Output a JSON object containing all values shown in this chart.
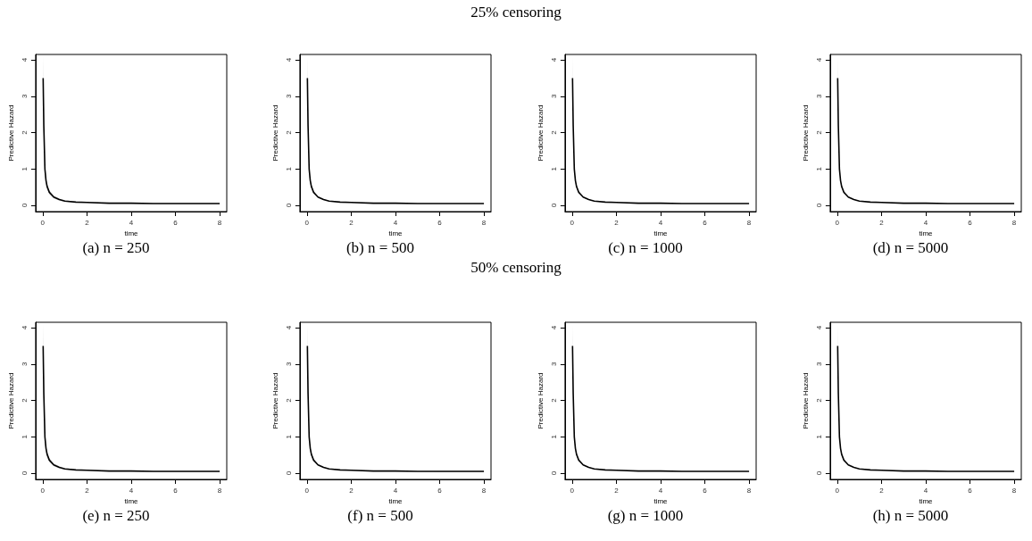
{
  "chart_data": [
    {
      "type": "line",
      "title": "(a) n = 250",
      "annotations": [
        "25% censoring"
      ],
      "xlabel": "time",
      "ylabel": "Predictive Hazard",
      "xlim": [
        -0.32,
        8.32
      ],
      "ylim": [
        -0.17,
        4.15
      ],
      "xticks": [
        0,
        2,
        4,
        6,
        8
      ],
      "yticks": [
        0,
        1,
        2,
        3,
        4
      ],
      "grid": false,
      "marker": "none",
      "x": [
        0.02,
        0.05,
        0.1,
        0.15,
        0.2,
        0.3,
        0.5,
        0.75,
        1,
        1.5,
        2,
        3,
        4,
        5,
        6,
        8
      ],
      "series": [
        {
          "color": "#000000",
          "values": [
            3.5,
            2.2,
            1.0,
            0.68,
            0.52,
            0.36,
            0.23,
            0.16,
            0.12,
            0.09,
            0.08,
            0.06,
            0.06,
            0.05,
            0.05,
            0.05
          ],
          "upper": [
            4.1,
            2.8,
            1.2,
            0.8,
            0.6,
            0.42,
            0.27,
            0.19,
            0.14,
            0.1,
            0.09,
            0.07,
            0.07,
            0.06,
            0.06,
            0.06
          ],
          "lower": [
            2.9,
            1.7,
            0.85,
            0.56,
            0.44,
            0.3,
            0.19,
            0.13,
            0.1,
            0.08,
            0.07,
            0.05,
            0.05,
            0.04,
            0.04,
            0.04
          ]
        }
      ]
    },
    {
      "type": "line",
      "title": "(b) n = 500",
      "xlabel": "time",
      "ylabel": "Predictive Hazard",
      "xlim": [
        -0.32,
        8.32
      ],
      "ylim": [
        -0.17,
        4.15
      ],
      "xticks": [
        0,
        2,
        4,
        6,
        8
      ],
      "yticks": [
        0,
        1,
        2,
        3,
        4
      ],
      "grid": false,
      "marker": "none",
      "x": [
        0.02,
        0.05,
        0.1,
        0.15,
        0.2,
        0.3,
        0.5,
        0.75,
        1,
        1.5,
        2,
        3,
        4,
        5,
        6,
        8
      ],
      "series": [
        {
          "color": "#000000",
          "values": [
            3.5,
            2.2,
            1.0,
            0.68,
            0.52,
            0.36,
            0.23,
            0.16,
            0.12,
            0.09,
            0.08,
            0.06,
            0.06,
            0.05,
            0.05,
            0.05
          ],
          "upper": [
            4.1,
            2.6,
            1.12,
            0.75,
            0.57,
            0.4,
            0.25,
            0.18,
            0.13,
            0.1,
            0.08,
            0.07,
            0.06,
            0.06,
            0.05,
            0.05
          ],
          "lower": [
            3.0,
            1.85,
            0.9,
            0.6,
            0.47,
            0.32,
            0.21,
            0.14,
            0.11,
            0.08,
            0.07,
            0.06,
            0.05,
            0.05,
            0.05,
            0.05
          ]
        }
      ]
    },
    {
      "type": "line",
      "title": "(c) n = 1000",
      "xlabel": "time",
      "ylabel": "Predictive Hazard",
      "xlim": [
        -0.32,
        8.32
      ],
      "ylim": [
        -0.17,
        4.15
      ],
      "xticks": [
        0,
        2,
        4,
        6,
        8
      ],
      "yticks": [
        0,
        1,
        2,
        3,
        4
      ],
      "grid": false,
      "marker": "none",
      "x": [
        0.02,
        0.05,
        0.1,
        0.15,
        0.2,
        0.3,
        0.5,
        0.75,
        1,
        1.5,
        2,
        3,
        4,
        5,
        6,
        8
      ],
      "series": [
        {
          "color": "#000000",
          "values": [
            3.5,
            2.2,
            1.0,
            0.68,
            0.52,
            0.36,
            0.23,
            0.16,
            0.12,
            0.09,
            0.08,
            0.06,
            0.06,
            0.05,
            0.05,
            0.05
          ],
          "upper": [
            4.1,
            2.4,
            1.06,
            0.71,
            0.54,
            0.38,
            0.24,
            0.17,
            0.13,
            0.09,
            0.08,
            0.06,
            0.06,
            0.05,
            0.05,
            0.05
          ],
          "lower": [
            3.2,
            2.0,
            0.95,
            0.65,
            0.5,
            0.34,
            0.22,
            0.15,
            0.12,
            0.09,
            0.07,
            0.06,
            0.05,
            0.05,
            0.05,
            0.05
          ]
        }
      ]
    },
    {
      "type": "line",
      "title": "(d) n = 5000",
      "xlabel": "time",
      "ylabel": "Predictive Hazard",
      "xlim": [
        -0.32,
        8.32
      ],
      "ylim": [
        -0.17,
        4.15
      ],
      "xticks": [
        0,
        2,
        4,
        6,
        8
      ],
      "yticks": [
        0,
        1,
        2,
        3,
        4
      ],
      "grid": false,
      "marker": "none",
      "x": [
        0.02,
        0.05,
        0.1,
        0.15,
        0.2,
        0.3,
        0.5,
        0.75,
        1,
        1.5,
        2,
        3,
        4,
        5,
        6,
        8
      ],
      "series": [
        {
          "color": "#000000",
          "values": [
            3.5,
            2.2,
            1.0,
            0.68,
            0.52,
            0.36,
            0.23,
            0.16,
            0.12,
            0.09,
            0.08,
            0.06,
            0.06,
            0.05,
            0.05,
            0.05
          ],
          "upper": [
            4.1,
            2.35,
            1.04,
            0.7,
            0.53,
            0.37,
            0.24,
            0.17,
            0.12,
            0.09,
            0.08,
            0.06,
            0.06,
            0.05,
            0.05,
            0.05
          ],
          "lower": [
            3.3,
            2.05,
            0.97,
            0.66,
            0.51,
            0.35,
            0.22,
            0.16,
            0.12,
            0.09,
            0.07,
            0.06,
            0.05,
            0.05,
            0.05,
            0.05
          ]
        }
      ]
    },
    {
      "type": "line",
      "title": "(e) n = 250",
      "annotations": [
        "50% censoring"
      ],
      "xlabel": "time",
      "ylabel": "Predictive Hazard",
      "xlim": [
        -0.32,
        8.32
      ],
      "ylim": [
        -0.17,
        4.15
      ],
      "xticks": [
        0,
        2,
        4,
        6,
        8
      ],
      "yticks": [
        0,
        1,
        2,
        3,
        4
      ],
      "grid": false,
      "marker": "none",
      "x": [
        0.02,
        0.05,
        0.1,
        0.15,
        0.2,
        0.3,
        0.5,
        0.75,
        1,
        1.5,
        2,
        3,
        4,
        5,
        6,
        8
      ],
      "series": [
        {
          "color": "#000000",
          "values": [
            3.5,
            2.2,
            1.0,
            0.68,
            0.52,
            0.36,
            0.23,
            0.16,
            0.12,
            0.09,
            0.08,
            0.06,
            0.06,
            0.05,
            0.05,
            0.05
          ],
          "upper": [
            4.1,
            2.8,
            1.2,
            0.8,
            0.6,
            0.42,
            0.27,
            0.19,
            0.14,
            0.1,
            0.09,
            0.07,
            0.07,
            0.06,
            0.06,
            0.06
          ],
          "lower": [
            2.9,
            1.7,
            0.85,
            0.56,
            0.44,
            0.3,
            0.19,
            0.13,
            0.1,
            0.08,
            0.07,
            0.05,
            0.05,
            0.04,
            0.04,
            0.04
          ]
        }
      ]
    },
    {
      "type": "line",
      "title": "(f) n = 500",
      "xlabel": "time",
      "ylabel": "Predictive Hazard",
      "xlim": [
        -0.32,
        8.32
      ],
      "ylim": [
        -0.17,
        4.15
      ],
      "xticks": [
        0,
        2,
        4,
        6,
        8
      ],
      "yticks": [
        0,
        1,
        2,
        3,
        4
      ],
      "grid": false,
      "marker": "none",
      "x": [
        0.02,
        0.05,
        0.1,
        0.15,
        0.2,
        0.3,
        0.5,
        0.75,
        1,
        1.5,
        2,
        3,
        4,
        5,
        6,
        8
      ],
      "series": [
        {
          "color": "#000000",
          "values": [
            3.5,
            2.2,
            1.0,
            0.68,
            0.52,
            0.36,
            0.23,
            0.16,
            0.12,
            0.09,
            0.08,
            0.06,
            0.06,
            0.05,
            0.05,
            0.05
          ],
          "upper": [
            4.1,
            2.6,
            1.12,
            0.75,
            0.57,
            0.4,
            0.25,
            0.18,
            0.13,
            0.1,
            0.08,
            0.07,
            0.06,
            0.06,
            0.06,
            0.06
          ],
          "lower": [
            3.0,
            1.85,
            0.9,
            0.6,
            0.47,
            0.32,
            0.21,
            0.14,
            0.11,
            0.08,
            0.07,
            0.05,
            0.05,
            0.05,
            0.04,
            0.04
          ]
        }
      ]
    },
    {
      "type": "line",
      "title": "(g) n = 1000",
      "xlabel": "time",
      "ylabel": "Predictive Hazard",
      "xlim": [
        -0.32,
        8.32
      ],
      "ylim": [
        -0.17,
        4.15
      ],
      "xticks": [
        0,
        2,
        4,
        6,
        8
      ],
      "yticks": [
        0,
        1,
        2,
        3,
        4
      ],
      "grid": false,
      "marker": "none",
      "x": [
        0.02,
        0.05,
        0.1,
        0.15,
        0.2,
        0.3,
        0.5,
        0.75,
        1,
        1.5,
        2,
        3,
        4,
        5,
        6,
        8
      ],
      "series": [
        {
          "color": "#000000",
          "values": [
            3.5,
            2.2,
            1.0,
            0.68,
            0.52,
            0.36,
            0.23,
            0.16,
            0.12,
            0.09,
            0.08,
            0.06,
            0.06,
            0.05,
            0.05,
            0.05
          ],
          "upper": [
            4.1,
            2.4,
            1.06,
            0.71,
            0.54,
            0.38,
            0.24,
            0.17,
            0.13,
            0.09,
            0.08,
            0.06,
            0.06,
            0.05,
            0.05,
            0.05
          ],
          "lower": [
            3.2,
            2.0,
            0.95,
            0.65,
            0.5,
            0.34,
            0.22,
            0.15,
            0.12,
            0.09,
            0.07,
            0.06,
            0.05,
            0.05,
            0.05,
            0.05
          ]
        }
      ]
    },
    {
      "type": "line",
      "title": "(h) n = 5000",
      "xlabel": "time",
      "ylabel": "Predictive Hazard",
      "xlim": [
        -0.32,
        8.32
      ],
      "ylim": [
        -0.17,
        4.15
      ],
      "xticks": [
        0,
        2,
        4,
        6,
        8
      ],
      "yticks": [
        0,
        1,
        2,
        3,
        4
      ],
      "grid": false,
      "marker": "none",
      "x": [
        0.02,
        0.05,
        0.1,
        0.15,
        0.2,
        0.3,
        0.5,
        0.75,
        1,
        1.5,
        2,
        3,
        4,
        5,
        6,
        8
      ],
      "series": [
        {
          "color": "#000000",
          "values": [
            3.5,
            2.2,
            1.0,
            0.68,
            0.52,
            0.36,
            0.23,
            0.16,
            0.12,
            0.09,
            0.08,
            0.06,
            0.06,
            0.05,
            0.05,
            0.05
          ],
          "upper": [
            4.1,
            2.35,
            1.04,
            0.7,
            0.53,
            0.37,
            0.24,
            0.17,
            0.12,
            0.09,
            0.08,
            0.06,
            0.06,
            0.05,
            0.05,
            0.05
          ],
          "lower": [
            3.3,
            2.05,
            0.97,
            0.66,
            0.51,
            0.35,
            0.22,
            0.16,
            0.12,
            0.09,
            0.07,
            0.06,
            0.05,
            0.05,
            0.05,
            0.05
          ]
        }
      ]
    }
  ]
}
